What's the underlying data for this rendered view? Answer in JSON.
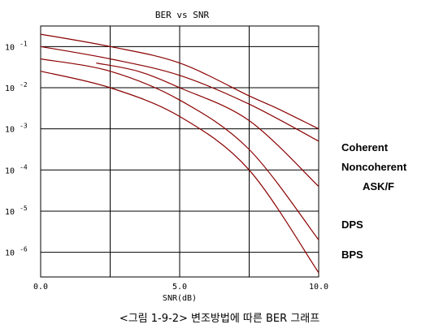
{
  "chart_data": {
    "type": "line",
    "title": "BER vs SNR",
    "xlabel": "SNR(dB)",
    "ylabel": "",
    "xlim": [
      0,
      10
    ],
    "ylim_exponent": [
      -6.6,
      -0.5
    ],
    "log_y": true,
    "grid": true,
    "x_ticks": [
      "0.0",
      "5.0",
      "10.0"
    ],
    "y_ticks": [
      {
        "base": "10",
        "exp": "-1",
        "value_exp": -1
      },
      {
        "base": "10",
        "exp": "-2",
        "value_exp": -2
      },
      {
        "base": "10",
        "exp": "-3",
        "value_exp": -3
      },
      {
        "base": "10",
        "exp": "-4",
        "value_exp": -4
      },
      {
        "base": "10",
        "exp": "-5",
        "value_exp": -5
      },
      {
        "base": "10",
        "exp": "-6",
        "value_exp": -6
      }
    ],
    "line_color": "#8b0000",
    "series": [
      {
        "name": "Coherent ASK/F",
        "x": [
          0,
          2.5,
          5,
          7.5,
          8.5,
          10
        ],
        "y_exp": [
          -0.7,
          -1.0,
          -1.4,
          -2.2,
          -2.5,
          -3.0
        ]
      },
      {
        "name": "Noncoherent ASK/F",
        "x": [
          0,
          2.5,
          5,
          7.5,
          10
        ],
        "y_exp": [
          -1.0,
          -1.3,
          -1.7,
          -2.4,
          -3.3
        ]
      },
      {
        "name": "",
        "x": [
          2.0,
          3.5,
          5,
          7.5,
          10
        ],
        "y_exp": [
          -1.4,
          -1.6,
          -2.0,
          -2.8,
          -4.4
        ]
      },
      {
        "name": "DPS",
        "x": [
          0,
          2.5,
          5,
          7.5,
          10
        ],
        "y_exp": [
          -1.3,
          -1.6,
          -2.3,
          -3.5,
          -5.7
        ]
      },
      {
        "name": "BPS",
        "x": [
          0,
          2.5,
          5,
          7.5,
          10
        ],
        "y_exp": [
          -1.6,
          -2.0,
          -2.7,
          -4.0,
          -6.5
        ]
      }
    ],
    "legend": [
      "Coherent",
      "Noncoherent",
      "ASK/F",
      "DPS",
      "BPS"
    ]
  },
  "caption": "<그림 1-9-2> 변조방법에 따른 BER 그래프"
}
